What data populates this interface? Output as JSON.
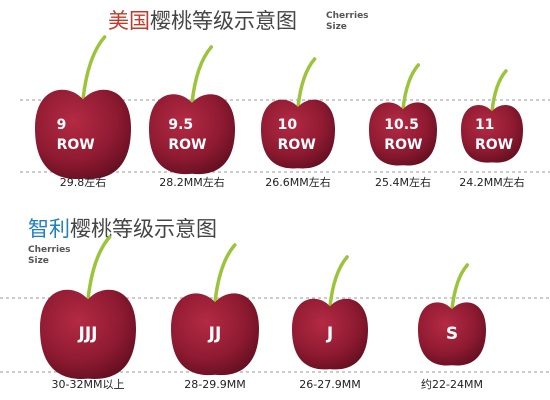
{
  "us": {
    "title_country": "美国",
    "title_rest": "樱桃等级示意图",
    "size_label": [
      "Cherries",
      "Size"
    ],
    "items": [
      {
        "grade": [
          "9",
          "ROW"
        ],
        "size": "29.8左右"
      },
      {
        "grade": [
          "9.5",
          "ROW"
        ],
        "size": "28.2MM左右"
      },
      {
        "grade": [
          "10",
          "ROW"
        ],
        "size": "26.6MM左右"
      },
      {
        "grade": [
          "10.5",
          "ROW"
        ],
        "size": "25.4M左右"
      },
      {
        "grade": [
          "11",
          "ROW"
        ],
        "size": "24.2MM左右"
      }
    ]
  },
  "chile": {
    "title_country": "智利",
    "title_rest": "樱桃等级示意图",
    "size_label": [
      "Cherries",
      "Size"
    ],
    "items": [
      {
        "grade": [
          "JJJ"
        ],
        "size": "30-32MM以上"
      },
      {
        "grade": [
          "JJ"
        ],
        "size": "28-29.9MM"
      },
      {
        "grade": [
          "J"
        ],
        "size": "26-27.9MM"
      },
      {
        "grade": [
          "S"
        ],
        "size": "约22-24MM"
      }
    ]
  }
}
